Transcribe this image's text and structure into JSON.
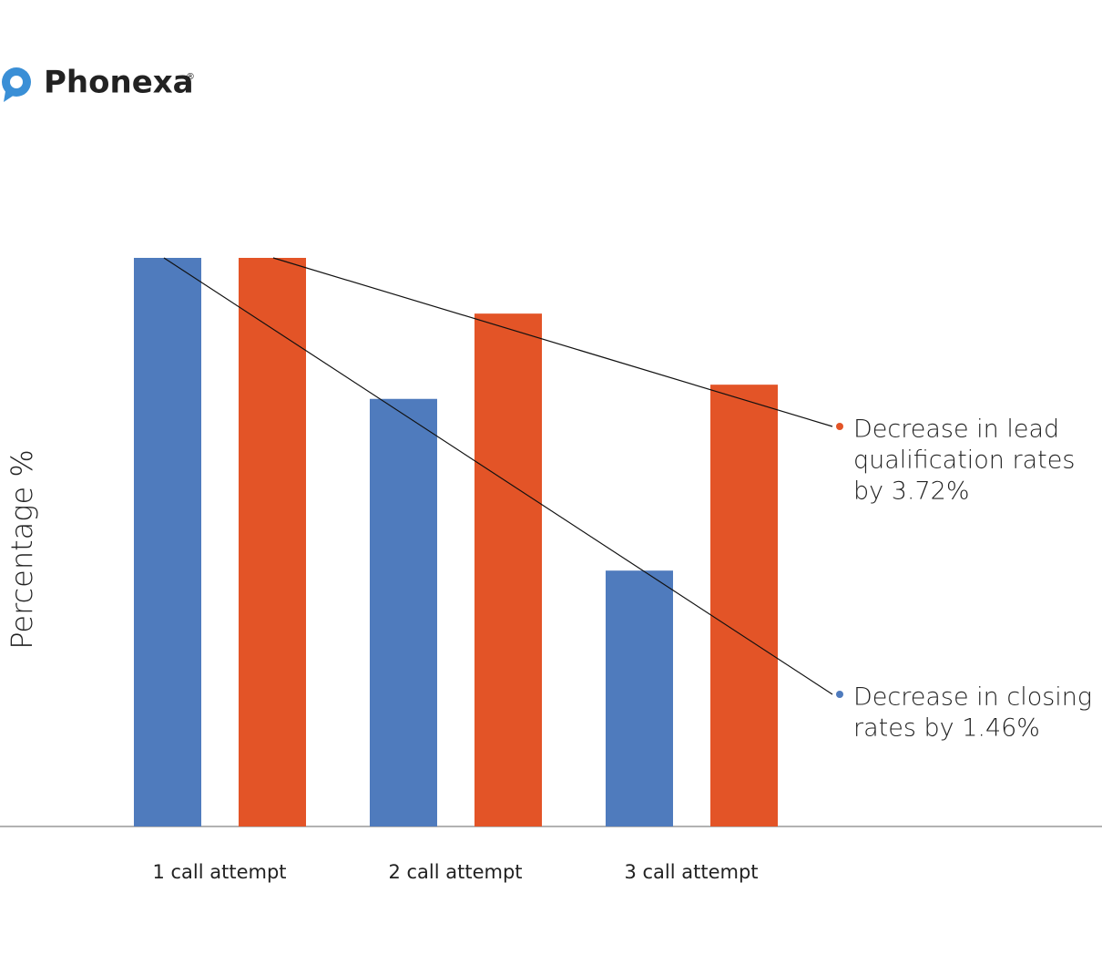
{
  "chart_data": {
    "type": "bar",
    "logo": "Phonexa",
    "logo_mark": "®",
    "y_axis_label": "Percentage %",
    "categories": [
      "1 call attempt",
      "2 call attempt",
      "3 call attempt"
    ],
    "series": [
      {
        "color": "#4f7bbd",
        "values": [
          100,
          75.2,
          45
        ]
      },
      {
        "color": "#e35427",
        "values": [
          100,
          90.2,
          77.7
        ]
      }
    ],
    "ylim": [
      0,
      100
    ],
    "annotations": [
      [
        "Decrease in closing",
        "rates by 1.46%"
      ],
      [
        "Decrease in lead",
        "qualification rates",
        "by 3.72%"
      ]
    ]
  }
}
